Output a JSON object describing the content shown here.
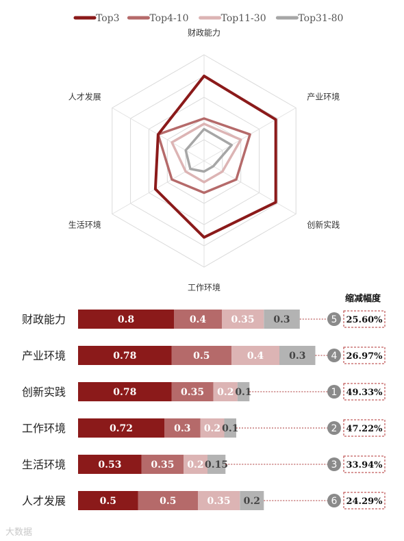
{
  "chart_data": [
    {
      "type": "radar",
      "axes": [
        "财政能力",
        "产业环境",
        "创新实践",
        "工作环境",
        "生活环境",
        "人才发展"
      ],
      "series": [
        {
          "name": "Top3",
          "color": "#8b1a1a",
          "values": [
            0.8,
            0.78,
            0.78,
            0.72,
            0.53,
            0.5
          ]
        },
        {
          "name": "Top4-10",
          "color": "#b56a6a",
          "values": [
            0.4,
            0.5,
            0.35,
            0.3,
            0.35,
            0.5
          ]
        },
        {
          "name": "Top11-30",
          "color": "#dcb4b4",
          "values": [
            0.35,
            0.4,
            0.2,
            0.2,
            0.2,
            0.35
          ]
        },
        {
          "name": "Top31-80",
          "color": "#a6a6a6",
          "values": [
            0.3,
            0.3,
            0.1,
            0.1,
            0.15,
            0.2
          ]
        }
      ],
      "rlim": [
        0,
        1
      ]
    },
    {
      "type": "bar",
      "orientation": "horizontal",
      "stacked": true,
      "categories": [
        "财政能力",
        "产业环境",
        "创新实践",
        "工作环境",
        "生活环境",
        "人才发展"
      ],
      "series": [
        {
          "name": "Top3",
          "values": [
            0.8,
            0.78,
            0.78,
            0.72,
            0.53,
            0.5
          ]
        },
        {
          "name": "Top4-10",
          "values": [
            0.4,
            0.5,
            0.35,
            0.3,
            0.35,
            0.5
          ]
        },
        {
          "name": "Top11-30",
          "values": [
            0.35,
            0.4,
            0.2,
            0.2,
            0.2,
            0.35
          ]
        },
        {
          "name": "Top31-80",
          "values": [
            0.3,
            0.3,
            0.1,
            0.1,
            0.15,
            0.2
          ]
        }
      ],
      "value_labels": [
        [
          "0.8",
          "0.4",
          "0.35",
          "0.3"
        ],
        [
          "0.78",
          "0.5",
          "0.4",
          "0.3"
        ],
        [
          "0.78",
          "0.35",
          "0.2",
          "0.1"
        ],
        [
          "0.72",
          "0.3",
          "0.2",
          "0.1"
        ],
        [
          "0.53",
          "0.35",
          "0.2",
          "0.15"
        ],
        [
          "0.5",
          "0.5",
          "0.35",
          "0.2"
        ]
      ],
      "reduction_header": "缩减幅度",
      "ranks": [
        "5",
        "4",
        "1",
        "2",
        "3",
        "6"
      ],
      "reductions": [
        "25.60%",
        "26.97%",
        "49.33%",
        "47.22%",
        "33.94%",
        "24.29%"
      ]
    }
  ],
  "legend": {
    "placement": "top"
  },
  "watermark": "大数据"
}
